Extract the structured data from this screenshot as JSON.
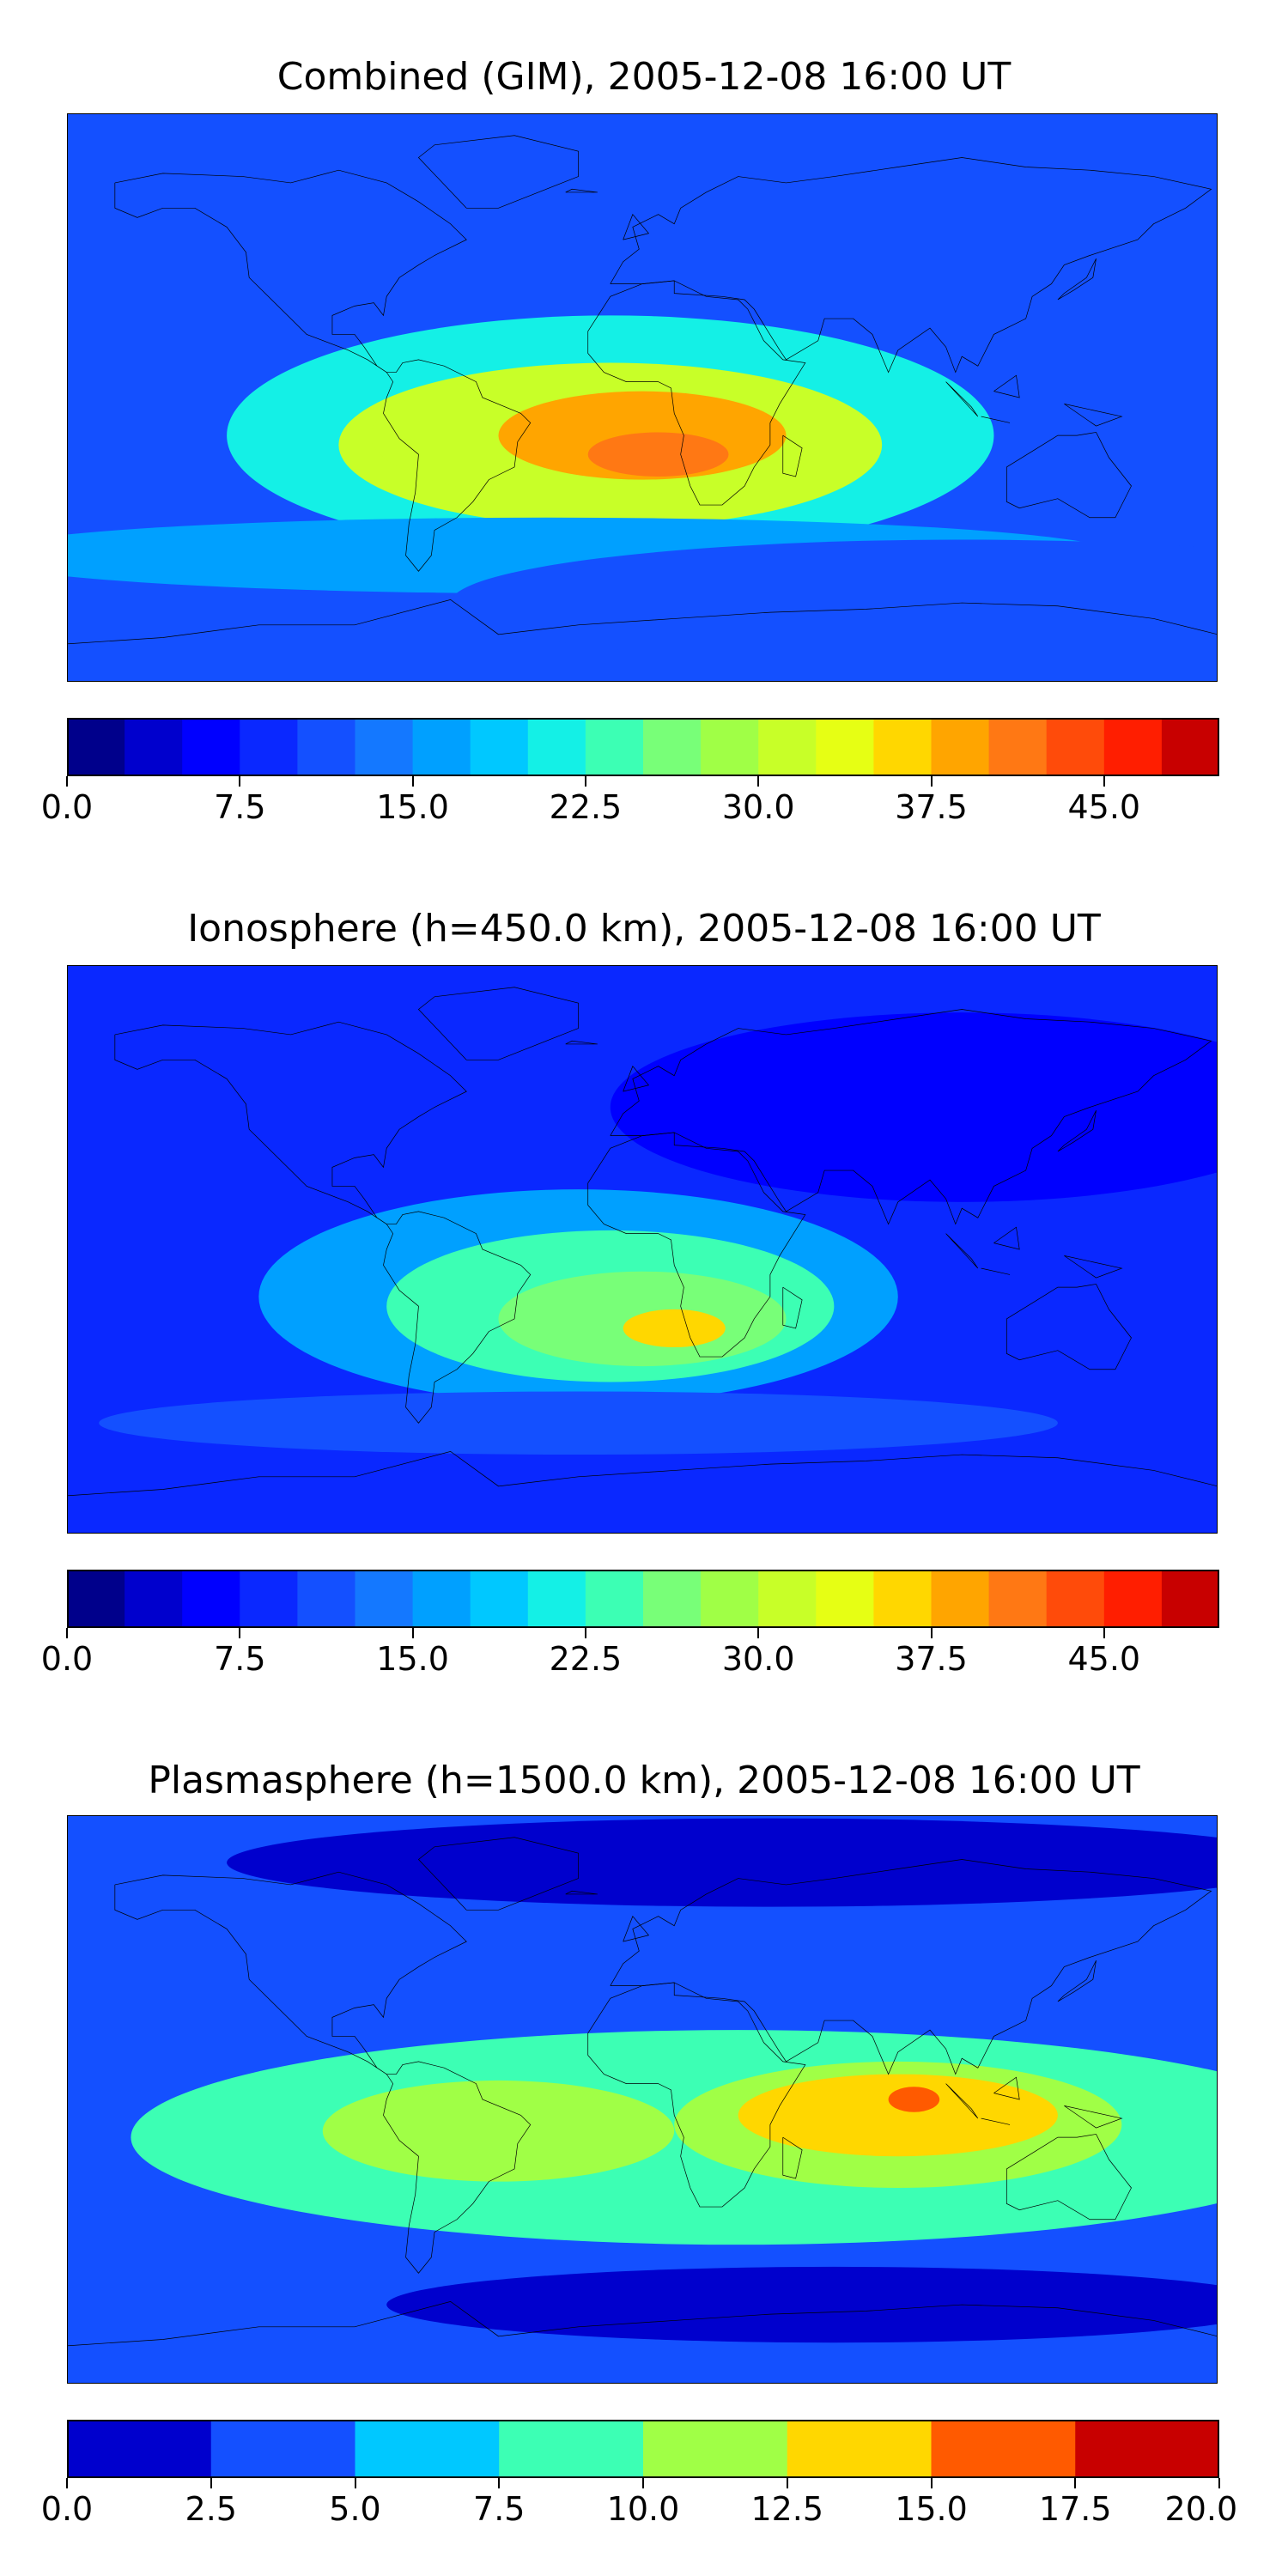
{
  "chart_data": [
    {
      "type": "heatmap",
      "title": "Combined (GIM), 2005-12-08 16:00 UT",
      "colorbar": {
        "min": 0.0,
        "max": 50.0,
        "levels": 20,
        "tick_values": [
          0.0,
          7.5,
          15.0,
          22.5,
          30.0,
          37.5,
          45.0
        ],
        "tick_labels": [
          "0.0",
          "7.5",
          "15.0",
          "22.5",
          "30.0",
          "37.5",
          "45.0"
        ],
        "colors": [
          "#00008b",
          "#0000cd",
          "#0000ff",
          "#0a28ff",
          "#1450ff",
          "#1478ff",
          "#00a0ff",
          "#00c8ff",
          "#14f0e6",
          "#3cffb4",
          "#78ff78",
          "#a0ff46",
          "#c8ff28",
          "#e6ff14",
          "#ffd700",
          "#ffa500",
          "#ff7814",
          "#ff4b0a",
          "#ff1e00",
          "#c80000",
          "#8b0000"
        ]
      },
      "background": "#1450ff",
      "blobs": [
        {
          "lon": -10,
          "lat": -12,
          "value": 20,
          "rx": 120,
          "ry": 38
        },
        {
          "lon": -10,
          "lat": -15,
          "value": 30,
          "rx": 85,
          "ry": 26
        },
        {
          "lon": -20,
          "lat": -12,
          "value": 32,
          "rx": 65,
          "ry": 20
        },
        {
          "lon": 0,
          "lat": -12,
          "value": 37.5,
          "rx": 45,
          "ry": 14
        },
        {
          "lon": 5,
          "lat": -18,
          "value": 42,
          "rx": 22,
          "ry": 7
        },
        {
          "lon": -30,
          "lat": -50,
          "value": 15,
          "rx": 180,
          "ry": 12
        },
        {
          "lon": 100,
          "lat": -65,
          "value": 10,
          "rx": 160,
          "ry": 20
        }
      ]
    },
    {
      "type": "heatmap",
      "title": "Ionosphere  (h=450.0 km), 2005-12-08 16:00 UT",
      "colorbar": {
        "min": 0.0,
        "max": 50.0,
        "levels": 20,
        "tick_values": [
          0.0,
          7.5,
          15.0,
          22.5,
          30.0,
          37.5,
          45.0
        ],
        "tick_labels": [
          "0.0",
          "7.5",
          "15.0",
          "22.5",
          "30.0",
          "37.5",
          "45.0"
        ],
        "colors": [
          "#00008b",
          "#0000cd",
          "#0000ff",
          "#0a28ff",
          "#1450ff",
          "#1478ff",
          "#00a0ff",
          "#00c8ff",
          "#14f0e6",
          "#3cffb4",
          "#78ff78",
          "#a0ff46",
          "#c8ff28",
          "#e6ff14",
          "#ffd700",
          "#ffa500",
          "#ff7814",
          "#ff4b0a",
          "#ff1e00",
          "#c80000",
          "#8b0000"
        ]
      },
      "background": "#0a28ff",
      "blobs": [
        {
          "lon": 100,
          "lat": 45,
          "value": 5,
          "rx": 110,
          "ry": 30
        },
        {
          "lon": -20,
          "lat": -15,
          "value": 17,
          "rx": 100,
          "ry": 34
        },
        {
          "lon": -10,
          "lat": -18,
          "value": 22.5,
          "rx": 70,
          "ry": 24
        },
        {
          "lon": 0,
          "lat": -22,
          "value": 27,
          "rx": 45,
          "ry": 15
        },
        {
          "lon": 10,
          "lat": -25,
          "value": 35,
          "rx": 16,
          "ry": 6
        },
        {
          "lon": -20,
          "lat": -55,
          "value": 12,
          "rx": 150,
          "ry": 10
        }
      ]
    },
    {
      "type": "heatmap",
      "title": "Plasmasphere (h=1500.0 km), 2005-12-08 16:00 UT",
      "colorbar": {
        "min": 0.0,
        "max": 20.0,
        "levels": 8,
        "tick_values": [
          0.0,
          2.5,
          5.0,
          7.5,
          10.0,
          12.5,
          15.0,
          17.5,
          20.0
        ],
        "tick_labels": [
          "0.0",
          "2.5",
          "5.0",
          "7.5",
          "10.0",
          "12.5",
          "15.0",
          "17.5",
          "20.0"
        ],
        "colors": [
          "#0000cd",
          "#1450ff",
          "#00c8ff",
          "#3cffb4",
          "#a0ff46",
          "#ffd700",
          "#ff5a00",
          "#c80000"
        ]
      },
      "background": "#1450ff",
      "blobs": [
        {
          "lon": 30,
          "lat": -12,
          "value": 7.5,
          "rx": 190,
          "ry": 34
        },
        {
          "lon": -45,
          "lat": -10,
          "value": 10.0,
          "rx": 55,
          "ry": 16
        },
        {
          "lon": 80,
          "lat": -8,
          "value": 10.0,
          "rx": 70,
          "ry": 20
        },
        {
          "lon": 80,
          "lat": -5,
          "value": 12.5,
          "rx": 50,
          "ry": 13
        },
        {
          "lon": 85,
          "lat": 0,
          "value": 15.0,
          "rx": 8,
          "ry": 4
        },
        {
          "lon": 60,
          "lat": -65,
          "value": 0.0,
          "rx": 140,
          "ry": 12
        },
        {
          "lon": 40,
          "lat": 75,
          "value": 0.0,
          "rx": 170,
          "ry": 14
        }
      ]
    }
  ]
}
